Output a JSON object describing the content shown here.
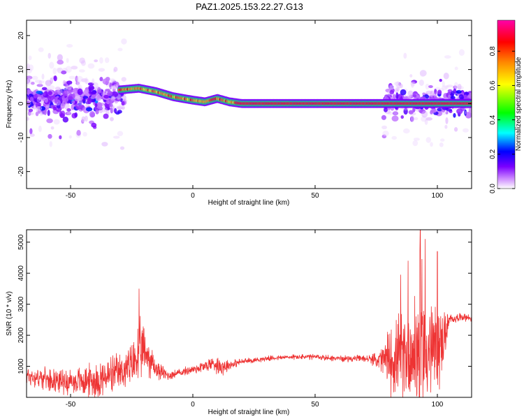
{
  "title": "PAZ1.2025.153.22.27.G13",
  "chart_data": [
    {
      "type": "heatmap",
      "xlabel": "Height of straight line (km)",
      "ylabel": "Frequency (Hz)",
      "xlim": [
        -68,
        114
      ],
      "ylim": [
        -25,
        24.5
      ],
      "xticks": [
        -50,
        0,
        50,
        100
      ],
      "yticks": [
        -20,
        -10,
        0,
        10,
        20
      ],
      "colorbar": {
        "label": "Normalized spectral amplitude",
        "range": [
          0.0,
          0.98
        ],
        "ticks": [
          0.0,
          0.2,
          0.4,
          0.6,
          0.8
        ],
        "tick_labels": [
          "0.0",
          "0.2",
          "0.4",
          "0.6",
          "0.8"
        ],
        "colormap": [
          "#ffffff",
          "#7a00ff",
          "#0000ff",
          "#00ffff",
          "#00ff00",
          "#ffff00",
          "#ff8800",
          "#ff0000",
          "#ff00aa"
        ]
      },
      "ridge": {
        "description_points_km_hz": [
          [
            -30,
            4.0
          ],
          [
            -22,
            4.5
          ],
          [
            -15,
            3.5
          ],
          [
            -8,
            2.0
          ],
          [
            0,
            1.0
          ],
          [
            5,
            0.5
          ],
          [
            10,
            1.5
          ],
          [
            15,
            0.5
          ],
          [
            20,
            0.0
          ],
          [
            114,
            0.0
          ]
        ]
      },
      "noise_regions_km": [
        [
          -68,
          -28
        ],
        [
          78,
          114
        ]
      ]
    },
    {
      "type": "line",
      "xlabel": "Height of straight line (km)",
      "ylabel": "SNR (10 * v/v)",
      "xlim": [
        -68,
        114
      ],
      "ylim": [
        0,
        5400
      ],
      "xticks": [
        -50,
        0,
        50,
        100
      ],
      "yticks": [
        1000,
        2000,
        3000,
        4000,
        5000
      ],
      "color": "#ee3333",
      "envelope": {
        "x": [
          -68,
          -60,
          -50,
          -40,
          -33,
          -30,
          -25,
          -22,
          -20,
          -18,
          -15,
          -10,
          -5,
          0,
          5,
          8,
          12,
          15,
          20,
          30,
          40,
          50,
          60,
          70,
          75,
          80,
          85,
          90,
          93,
          95,
          98,
          100,
          103,
          105,
          110,
          114
        ],
        "mid": [
          700,
          600,
          500,
          550,
          700,
          800,
          1000,
          1400,
          1500,
          1300,
          900,
          700,
          800,
          900,
          1000,
          1100,
          1000,
          1050,
          1150,
          1250,
          1300,
          1300,
          1250,
          1250,
          1200,
          1200,
          1300,
          1500,
          1600,
          1600,
          1500,
          1500,
          2000,
          2500,
          2600,
          2550
        ],
        "spread": [
          400,
          400,
          500,
          700,
          800,
          700,
          900,
          1300,
          1000,
          800,
          400,
          200,
          150,
          200,
          250,
          300,
          400,
          200,
          120,
          100,
          100,
          120,
          120,
          130,
          250,
          1200,
          1700,
          2000,
          3500,
          2500,
          2000,
          1800,
          1000,
          200,
          150,
          150
        ]
      },
      "peaks": [
        {
          "x": -22,
          "y": 3500
        },
        {
          "x": 93,
          "y": 5400
        },
        {
          "x": 95,
          "y": 5100
        },
        {
          "x": 100,
          "y": 4700
        },
        {
          "x": 88,
          "y": 4400
        },
        {
          "x": 85,
          "y": 3950
        }
      ]
    }
  ]
}
